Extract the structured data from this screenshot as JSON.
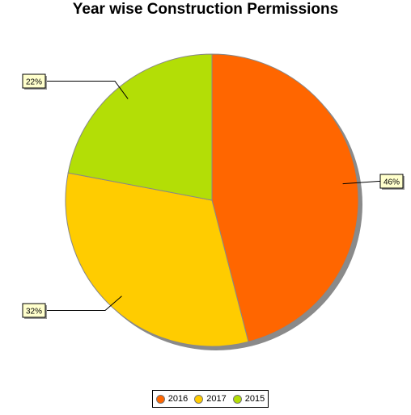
{
  "chart_data": {
    "type": "pie",
    "title": "Year wise Construction Permissions",
    "slices": [
      {
        "label": "2016",
        "value": 46,
        "display": "46%",
        "color": "#ff6600"
      },
      {
        "label": "2017",
        "value": 32,
        "display": "32%",
        "color": "#ffcc00"
      },
      {
        "label": "2015",
        "value": 22,
        "display": "22%",
        "color": "#b3de06"
      }
    ],
    "legend_position": "bottom",
    "label_style": "boxed callouts with leader lines",
    "shadow": true
  }
}
